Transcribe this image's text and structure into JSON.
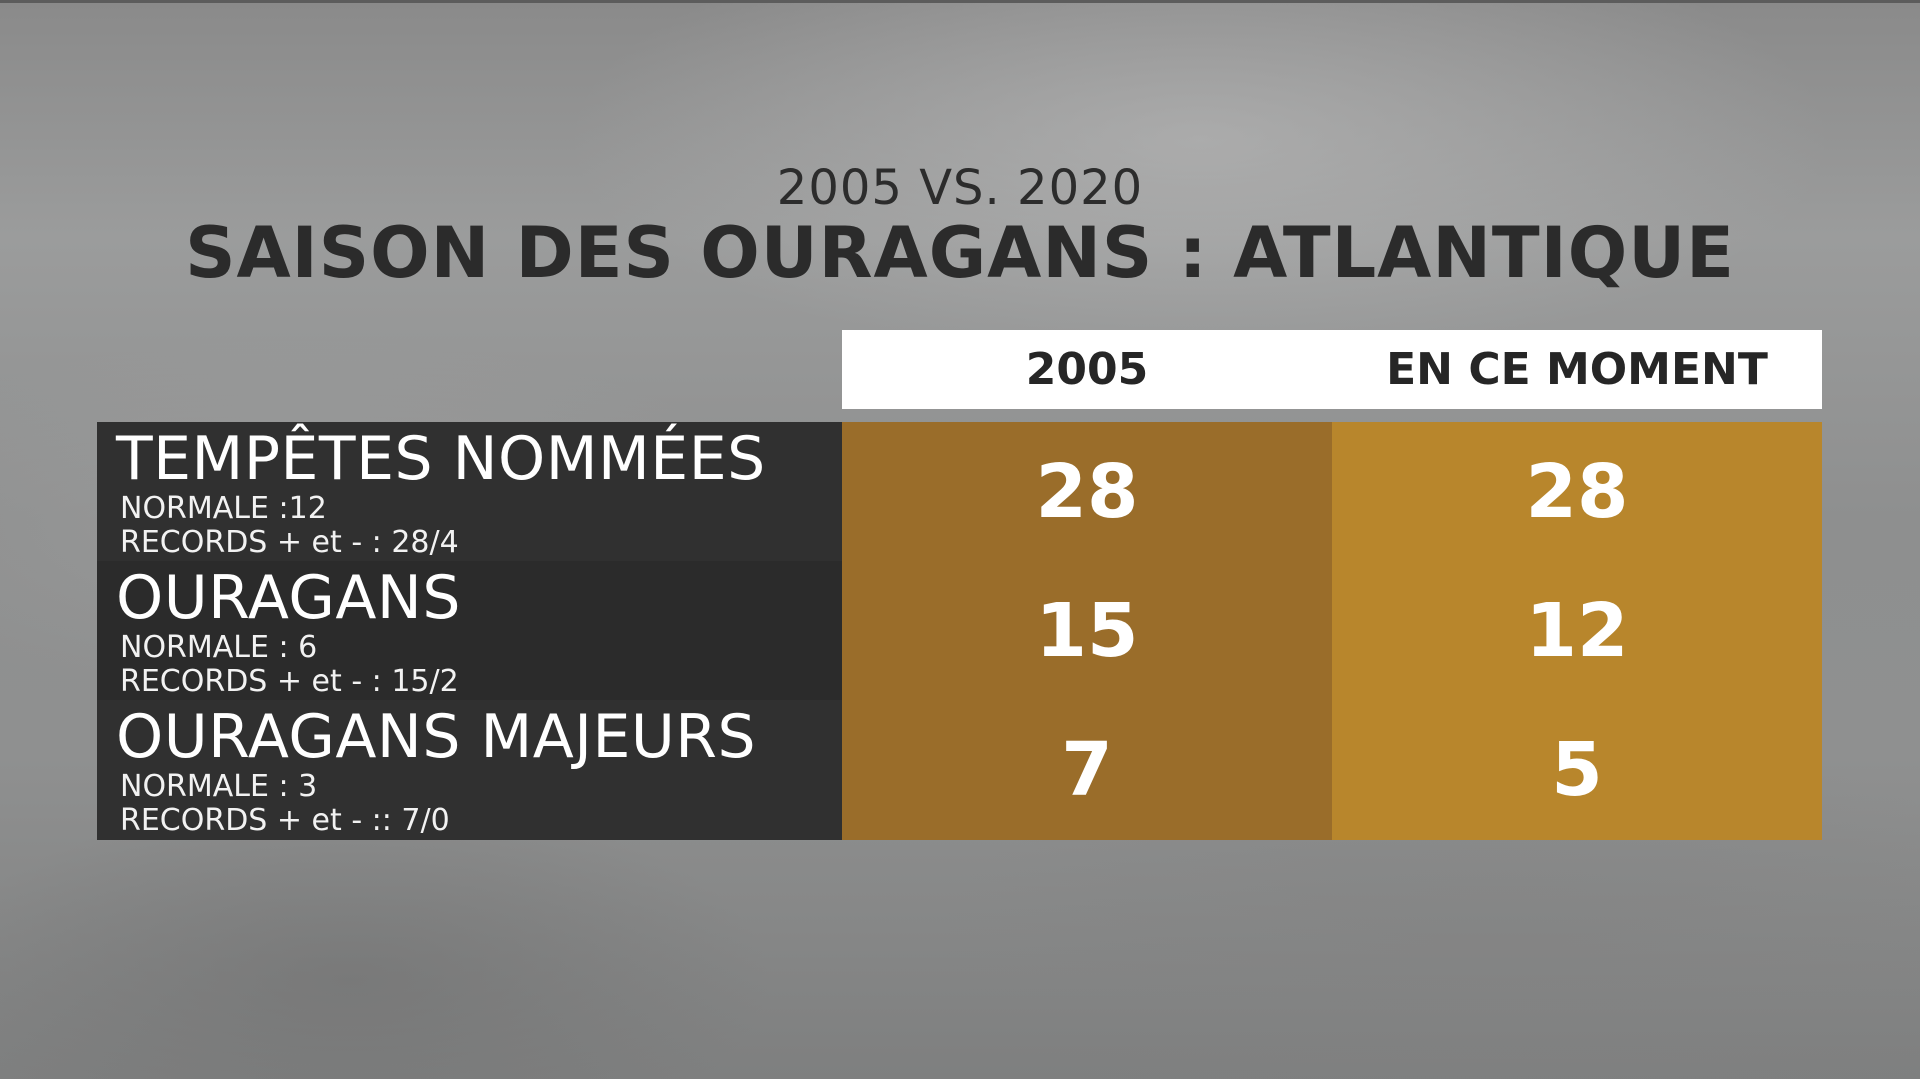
{
  "header": {
    "subtitle": "2005 VS. 2020",
    "title": "SAISON DES OURAGANS : ATLANTIQUE"
  },
  "columns": [
    "2005",
    "EN CE MOMENT"
  ],
  "rows": [
    {
      "label": "TEMPÊTES NOMMÉES",
      "normal": "NORMALE :12",
      "records": "RECORDS + et - : 28/4",
      "value_2005": "28",
      "value_now": "28"
    },
    {
      "label": "OURAGANS",
      "normal": "NORMALE : 6",
      "records": "RECORDS + et - : 15/2",
      "value_2005": "15",
      "value_now": "12"
    },
    {
      "label": "OURAGANS MAJEURS",
      "normal": "NORMALE : 3",
      "records": "RECORDS + et - :: 7/0",
      "value_2005": "7",
      "value_now": "5"
    }
  ],
  "colors": {
    "label_bg": "#303030",
    "col_2005_bg": "#9a6d2a",
    "col_now_bg": "#b8862c",
    "header_bg": "#ffffff"
  }
}
